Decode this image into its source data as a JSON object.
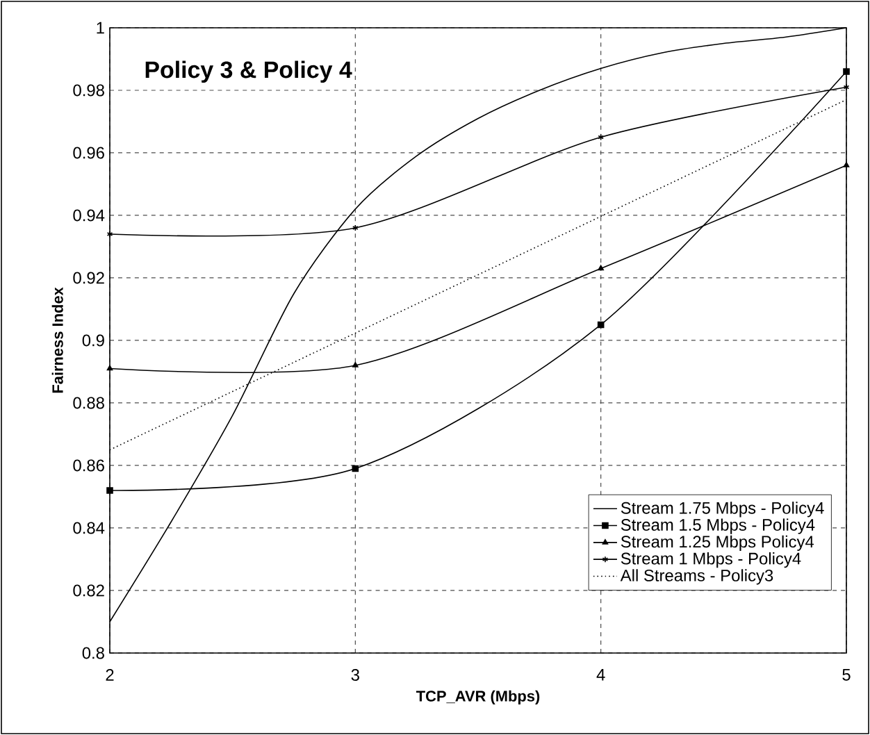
{
  "chart_data": {
    "type": "line",
    "title": "Policy 3 & Policy 4",
    "xlabel": "TCP_AVR (Mbps)",
    "ylabel": "Fairness Index",
    "xlim": [
      2,
      5
    ],
    "xticks": [
      2,
      3,
      4,
      5
    ],
    "ylim": [
      0.8,
      1
    ],
    "yticks": [
      0.8,
      0.82,
      0.84,
      0.86,
      0.88,
      0.9,
      0.92,
      0.94,
      0.96,
      0.98,
      1
    ],
    "grid": true,
    "legend": "bottom right",
    "series": [
      {
        "name": "Stream 1.75 Mbps - Policy4",
        "color": "#000000",
        "marker": "none",
        "line_style": "solid",
        "x": [
          2,
          2.25,
          2.5,
          2.75,
          3,
          3.25,
          3.5,
          3.75,
          4,
          4.25,
          4.5,
          4.75,
          5
        ],
        "values": [
          0.81,
          0.842,
          0.876,
          0.915,
          0.942,
          0.959,
          0.971,
          0.98,
          0.987,
          0.992,
          0.995,
          0.997,
          1
        ]
      },
      {
        "name": "Stream 1.5 Mbps - Policy4",
        "color": "#000000",
        "marker": "square",
        "line_style": "solid",
        "x": [
          2,
          3,
          4,
          5
        ],
        "values": [
          0.852,
          0.859,
          0.905,
          0.986
        ]
      },
      {
        "name": "Stream 1.25 Mbps Policy4",
        "color": "#000000",
        "marker": "triangle",
        "line_style": "solid",
        "x": [
          2,
          3,
          4,
          5
        ],
        "values": [
          0.891,
          0.892,
          0.923,
          0.956
        ]
      },
      {
        "name": "Stream 1 Mbps - Policy4",
        "color": "#000000",
        "marker": "cross",
        "line_style": "solid",
        "x": [
          2,
          3,
          4,
          5
        ],
        "values": [
          0.934,
          0.936,
          0.965,
          0.981
        ]
      },
      {
        "name": "All Streams - Policy3",
        "color": "#000000",
        "marker": "none",
        "line_style": "dotted",
        "x": [
          2,
          5
        ],
        "values": [
          0.865,
          0.977
        ]
      }
    ]
  }
}
